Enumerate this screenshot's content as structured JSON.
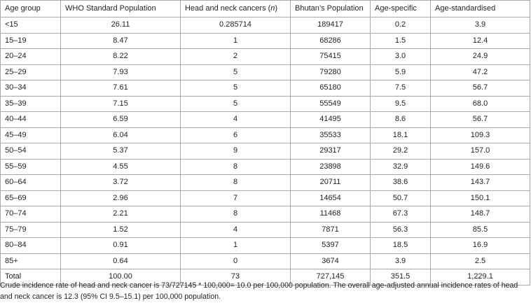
{
  "table": {
    "headers": {
      "age_group": "Age group",
      "who_standard": "WHO Standard Population",
      "cases_prefix": "Head and neck cancers (",
      "cases_n": "n",
      "cases_suffix": ")",
      "bhutan_population": "Bhutan’s Population",
      "age_specific": "Age-specific",
      "age_standardised": "Age-standardised"
    },
    "rows": [
      [
        "<15",
        "26.11",
        "0.285714",
        "189417",
        "0.2",
        "3.9"
      ],
      [
        "15–19",
        "8.47",
        "1",
        "68286",
        "1.5",
        "12.4"
      ],
      [
        "20–24",
        "8.22",
        "2",
        "75415",
        "3.0",
        "24.9"
      ],
      [
        "25–29",
        "7.93",
        "5",
        "79280",
        "5.9",
        "47.2"
      ],
      [
        "30–34",
        "7.61",
        "5",
        "65180",
        "7.5",
        "56.7"
      ],
      [
        "35–39",
        "7.15",
        "5",
        "55549",
        "9.5",
        "68.0"
      ],
      [
        "40–44",
        "6.59",
        "4",
        "41495",
        "8.6",
        "56.7"
      ],
      [
        "45–49",
        "6.04",
        "6",
        "35533",
        "18.1",
        "109.3"
      ],
      [
        "50–54",
        "5.37",
        "9",
        "29317",
        "29.2",
        "157.0"
      ],
      [
        "55–59",
        "4.55",
        "8",
        "23898",
        "32.9",
        "149.6"
      ],
      [
        "60–64",
        "3.72",
        "8",
        "20711",
        "38.6",
        "143.7"
      ],
      [
        "65–69",
        "2.96",
        "7",
        "14654",
        "50.7",
        "150.1"
      ],
      [
        "70–74",
        "2.21",
        "8",
        "11468",
        "67.3",
        "148.7"
      ],
      [
        "75–79",
        "1.52",
        "4",
        "7871",
        "56.3",
        "85.5"
      ],
      [
        "80–84",
        "0.91",
        "1",
        "5397",
        "18.5",
        "16.9"
      ],
      [
        "85+",
        "0.64",
        "0",
        "3674",
        "3.9",
        "2.5"
      ],
      [
        "Total",
        "100.00",
        "73",
        "727,145",
        "351.5",
        "1,229.1"
      ]
    ]
  },
  "footnote": "Crude incidence rate of head and neck cancer is 73/727145 * 100,000= 10.0 per 100,000 population. The overall age-adjusted annual incidence rates of head and neck cancer is 12.3 (95% CI 9.5–15.1) per 100,000 population."
}
